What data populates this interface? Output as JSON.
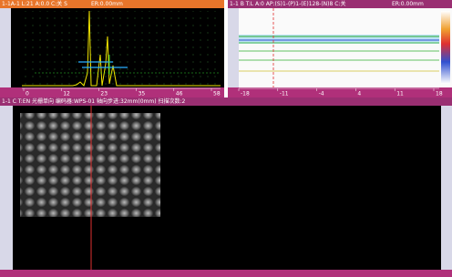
{
  "a_scan": {
    "header": "1-1A-1 L:21 A:0.0 C:关 S",
    "er": "ER:0.00mm",
    "xticks": [
      "0",
      "12",
      "23",
      "35",
      "46",
      "58"
    ]
  },
  "b_scan": {
    "header": "1-1 B T:L A:0 AP:(S)1-(P)1-(E)128-(N)8 C:关",
    "er": "ER:0.00mm",
    "xticks": [
      "-18",
      "-11",
      "-4",
      "4",
      "11",
      "18"
    ]
  },
  "c_scan": {
    "header": "1-1 C T:EN  光栅单向  编码器:WPS-01  轴向步进:32mm(0mm)  扫描次数:2"
  }
}
